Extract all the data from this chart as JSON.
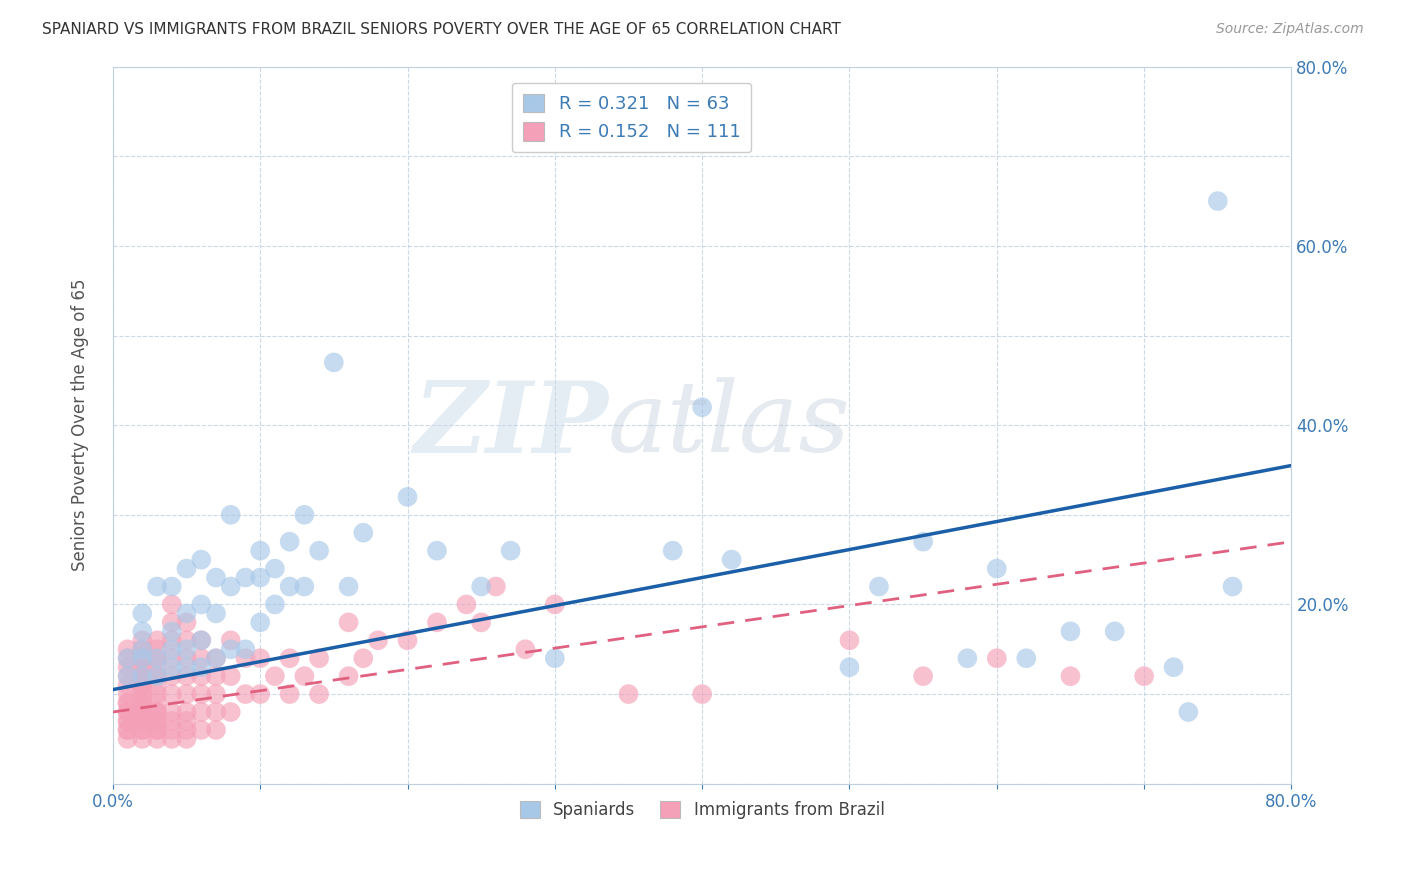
{
  "title": "SPANIARD VS IMMIGRANTS FROM BRAZIL SENIORS POVERTY OVER THE AGE OF 65 CORRELATION CHART",
  "source": "Source: ZipAtlas.com",
  "ylabel": "Seniors Poverty Over the Age of 65",
  "xlim": [
    0.0,
    0.8
  ],
  "ylim": [
    0.0,
    0.8
  ],
  "xticks": [
    0.0,
    0.1,
    0.2,
    0.3,
    0.4,
    0.5,
    0.6,
    0.7,
    0.8
  ],
  "yticks": [
    0.0,
    0.1,
    0.2,
    0.3,
    0.4,
    0.5,
    0.6,
    0.7,
    0.8
  ],
  "xtick_labels": [
    "0.0%",
    "",
    "",
    "",
    "",
    "",
    "",
    "",
    "80.0%"
  ],
  "ytick_labels_right": [
    "",
    "",
    "20.0%",
    "",
    "40.0%",
    "",
    "60.0%",
    "",
    "80.0%"
  ],
  "spaniards_color": "#a8c8e8",
  "brazil_color": "#f4a0b8",
  "spaniards_line_color": "#1a5fa8",
  "brazil_line_color": "#e06080",
  "R_spaniards": 0.321,
  "N_spaniards": 63,
  "R_brazil": 0.152,
  "N_brazil": 111,
  "spaniards_x": [
    0.01,
    0.01,
    0.02,
    0.02,
    0.02,
    0.02,
    0.02,
    0.03,
    0.03,
    0.03,
    0.04,
    0.04,
    0.04,
    0.04,
    0.05,
    0.05,
    0.05,
    0.05,
    0.06,
    0.06,
    0.06,
    0.06,
    0.07,
    0.07,
    0.07,
    0.08,
    0.08,
    0.08,
    0.09,
    0.09,
    0.1,
    0.1,
    0.1,
    0.11,
    0.11,
    0.12,
    0.12,
    0.13,
    0.13,
    0.14,
    0.15,
    0.16,
    0.17,
    0.2,
    0.22,
    0.25,
    0.27,
    0.3,
    0.38,
    0.4,
    0.42,
    0.5,
    0.52,
    0.55,
    0.58,
    0.6,
    0.62,
    0.65,
    0.68,
    0.72,
    0.73,
    0.75,
    0.76
  ],
  "spaniards_y": [
    0.12,
    0.14,
    0.12,
    0.14,
    0.15,
    0.17,
    0.19,
    0.12,
    0.14,
    0.22,
    0.13,
    0.15,
    0.17,
    0.22,
    0.13,
    0.15,
    0.19,
    0.24,
    0.13,
    0.16,
    0.2,
    0.25,
    0.14,
    0.19,
    0.23,
    0.15,
    0.22,
    0.3,
    0.15,
    0.23,
    0.18,
    0.23,
    0.26,
    0.2,
    0.24,
    0.22,
    0.27,
    0.22,
    0.3,
    0.26,
    0.47,
    0.22,
    0.28,
    0.32,
    0.26,
    0.22,
    0.26,
    0.14,
    0.26,
    0.42,
    0.25,
    0.13,
    0.22,
    0.27,
    0.14,
    0.24,
    0.14,
    0.17,
    0.17,
    0.13,
    0.08,
    0.65,
    0.22
  ],
  "brazil_x": [
    0.01,
    0.01,
    0.01,
    0.01,
    0.01,
    0.01,
    0.01,
    0.01,
    0.01,
    0.01,
    0.01,
    0.01,
    0.01,
    0.01,
    0.01,
    0.02,
    0.02,
    0.02,
    0.02,
    0.02,
    0.02,
    0.02,
    0.02,
    0.02,
    0.02,
    0.02,
    0.02,
    0.02,
    0.02,
    0.02,
    0.02,
    0.02,
    0.02,
    0.02,
    0.02,
    0.03,
    0.03,
    0.03,
    0.03,
    0.03,
    0.03,
    0.03,
    0.03,
    0.03,
    0.03,
    0.03,
    0.03,
    0.03,
    0.03,
    0.03,
    0.04,
    0.04,
    0.04,
    0.04,
    0.04,
    0.04,
    0.04,
    0.04,
    0.04,
    0.04,
    0.05,
    0.05,
    0.05,
    0.05,
    0.05,
    0.05,
    0.05,
    0.05,
    0.05,
    0.06,
    0.06,
    0.06,
    0.06,
    0.06,
    0.06,
    0.07,
    0.07,
    0.07,
    0.07,
    0.07,
    0.08,
    0.08,
    0.08,
    0.09,
    0.09,
    0.1,
    0.1,
    0.11,
    0.12,
    0.12,
    0.13,
    0.14,
    0.14,
    0.16,
    0.16,
    0.17,
    0.18,
    0.2,
    0.22,
    0.24,
    0.25,
    0.26,
    0.28,
    0.3,
    0.35,
    0.4,
    0.5,
    0.55,
    0.6,
    0.65,
    0.7
  ],
  "brazil_y": [
    0.05,
    0.06,
    0.07,
    0.08,
    0.09,
    0.1,
    0.11,
    0.12,
    0.13,
    0.14,
    0.15,
    0.06,
    0.07,
    0.08,
    0.09,
    0.05,
    0.06,
    0.07,
    0.08,
    0.09,
    0.1,
    0.11,
    0.12,
    0.13,
    0.14,
    0.15,
    0.06,
    0.07,
    0.08,
    0.09,
    0.1,
    0.11,
    0.12,
    0.14,
    0.16,
    0.05,
    0.06,
    0.07,
    0.08,
    0.09,
    0.1,
    0.11,
    0.12,
    0.13,
    0.14,
    0.15,
    0.16,
    0.06,
    0.07,
    0.08,
    0.05,
    0.06,
    0.07,
    0.08,
    0.1,
    0.12,
    0.14,
    0.16,
    0.18,
    0.2,
    0.05,
    0.06,
    0.07,
    0.08,
    0.1,
    0.12,
    0.14,
    0.16,
    0.18,
    0.06,
    0.08,
    0.1,
    0.12,
    0.14,
    0.16,
    0.06,
    0.08,
    0.1,
    0.12,
    0.14,
    0.08,
    0.12,
    0.16,
    0.1,
    0.14,
    0.1,
    0.14,
    0.12,
    0.1,
    0.14,
    0.12,
    0.1,
    0.14,
    0.12,
    0.18,
    0.14,
    0.16,
    0.16,
    0.18,
    0.2,
    0.18,
    0.22,
    0.15,
    0.2,
    0.1,
    0.1,
    0.16,
    0.12,
    0.14,
    0.12,
    0.12
  ],
  "line_spaniards": [
    0.0,
    0.8,
    0.105,
    0.355
  ],
  "line_brazil": [
    0.0,
    0.8,
    0.08,
    0.27
  ]
}
